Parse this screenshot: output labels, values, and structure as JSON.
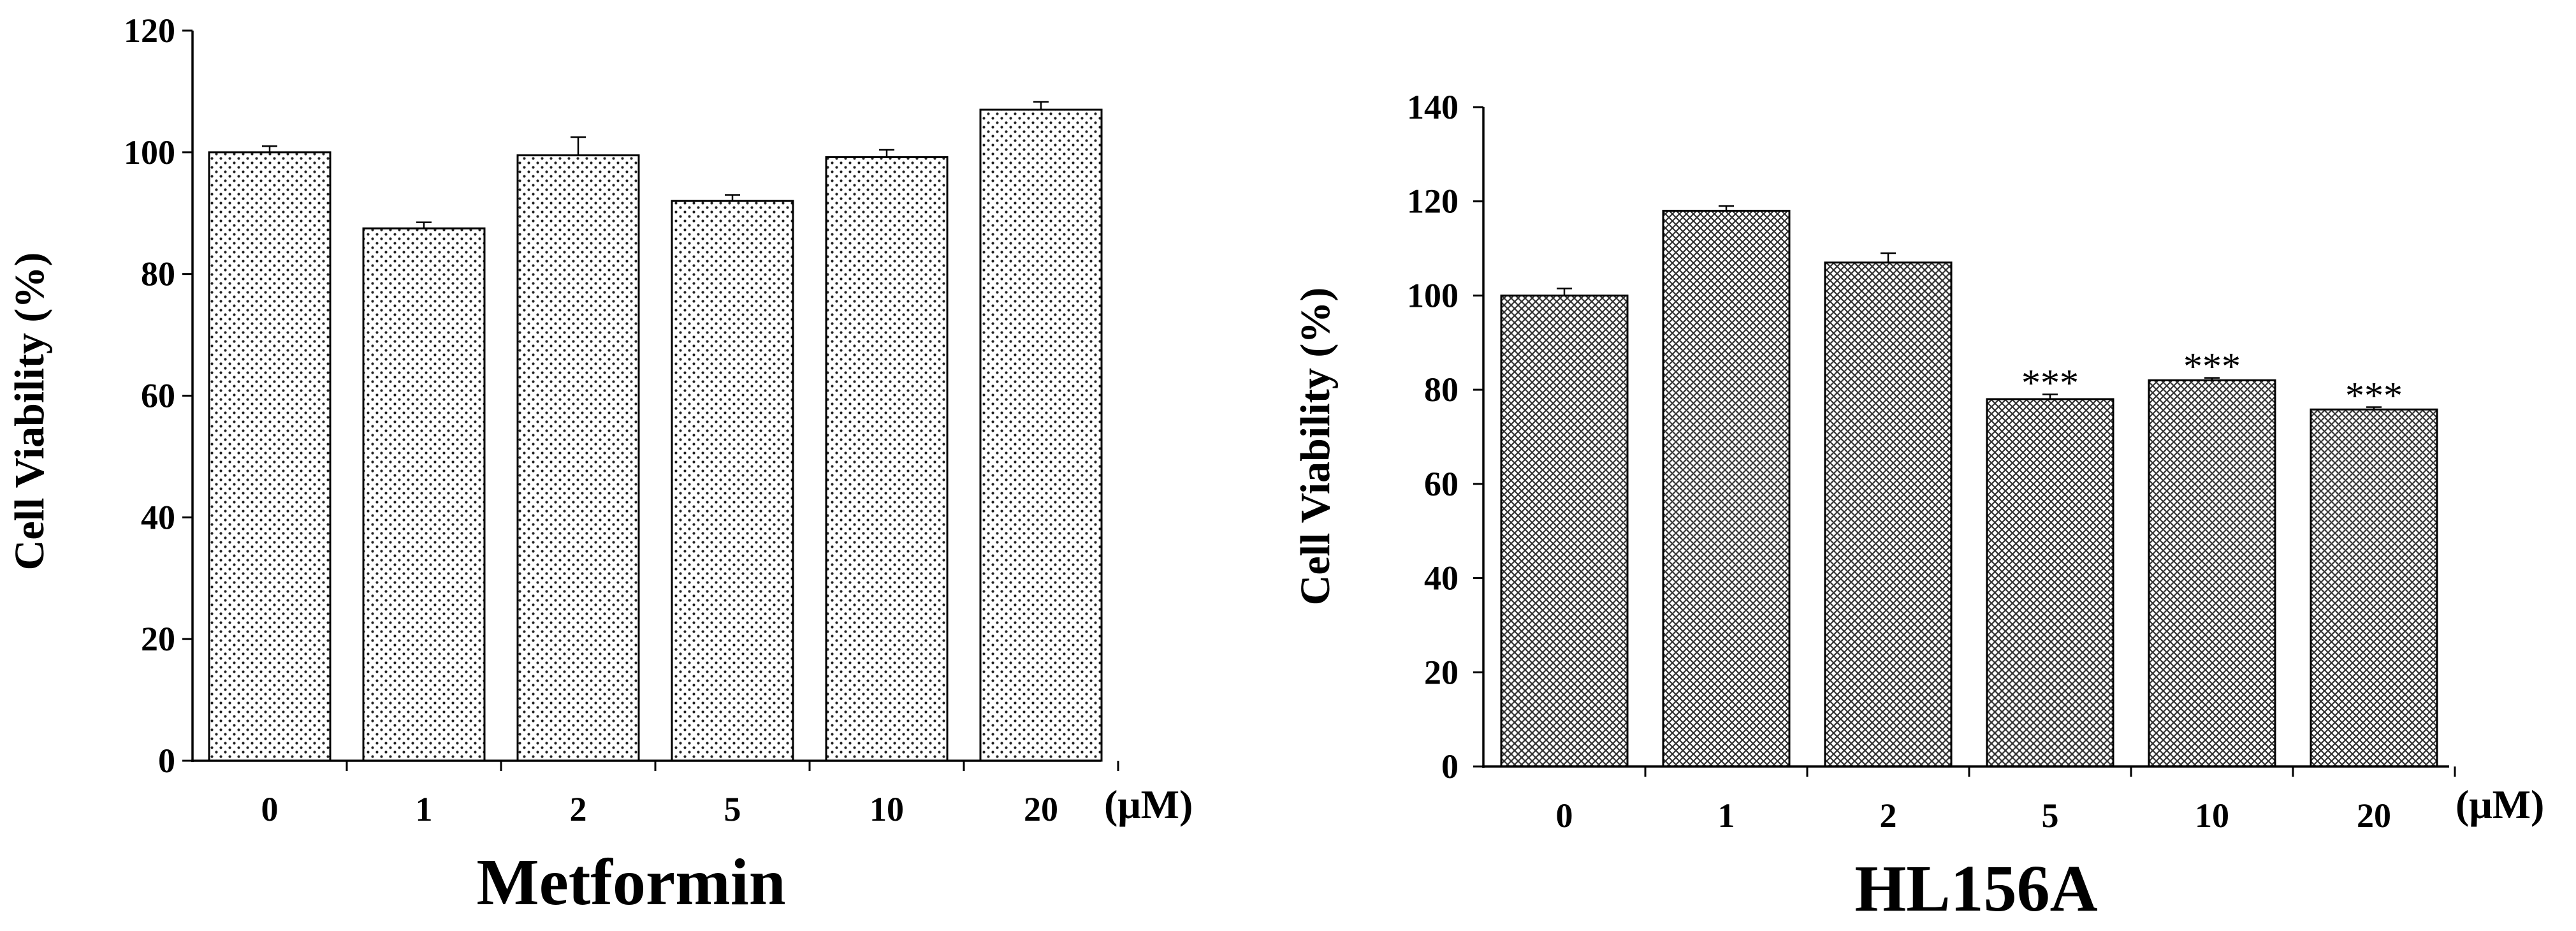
{
  "chart_data": [
    {
      "type": "bar",
      "title": "Metformin",
      "ylabel": "Cell Viability (%)",
      "unit_label": "(μM)",
      "ylim": [
        0,
        120
      ],
      "yticks": [
        0,
        20,
        40,
        60,
        80,
        100,
        120
      ],
      "categories": [
        "0",
        "1",
        "2",
        "5",
        "10",
        "20"
      ],
      "series": [
        {
          "values": [
            100,
            87.5,
            99.5,
            92,
            99.2,
            107
          ],
          "errors": [
            1,
            1,
            3,
            1,
            1.2,
            1.3
          ],
          "annotations": [
            "",
            "",
            "",
            "",
            "",
            ""
          ]
        }
      ],
      "fill_pattern": "dots",
      "grid": false,
      "legend": "none"
    },
    {
      "type": "bar",
      "title": "HL156A",
      "ylabel": "Cell Viability (%)",
      "unit_label": "(μM)",
      "ylim": [
        0,
        140
      ],
      "yticks": [
        0,
        20,
        40,
        60,
        80,
        100,
        120,
        140
      ],
      "categories": [
        "0",
        "1",
        "2",
        "5",
        "10",
        "20"
      ],
      "series": [
        {
          "values": [
            100,
            118,
            107,
            78,
            82,
            75.8
          ],
          "errors": [
            1.5,
            1,
            2,
            1,
            0.5,
            0.5
          ],
          "annotations": [
            "",
            "",
            "",
            "***",
            "***",
            "***"
          ]
        }
      ],
      "fill_pattern": "crosshatch",
      "grid": false,
      "legend": "none"
    }
  ]
}
